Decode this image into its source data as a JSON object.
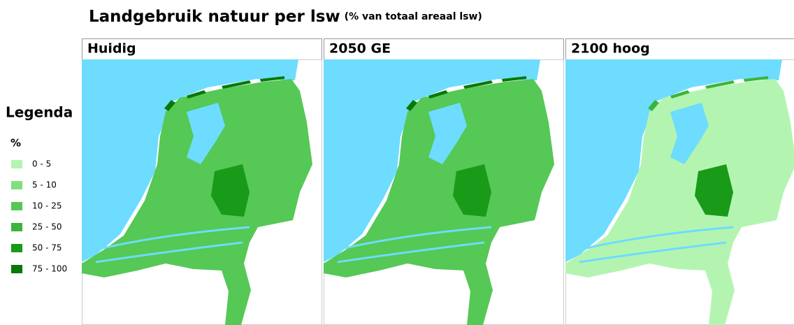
{
  "title": "Landgebruik natuur per lsw",
  "subtitle": "(% van totaal areaal lsw)",
  "panels": [
    {
      "title": "Huidig"
    },
    {
      "title": "2050 GE"
    },
    {
      "title": "2100 hoog"
    }
  ],
  "legend": {
    "title": "Legenda",
    "unit": "%",
    "items": [
      {
        "label": "0 - 5",
        "color": "#b3f5b0"
      },
      {
        "label": "5 - 10",
        "color": "#80e07c"
      },
      {
        "label": "10 - 25",
        "color": "#55c855"
      },
      {
        "label": "25 - 50",
        "color": "#3cb43c"
      },
      {
        "label": "50 - 75",
        "color": "#199a19"
      },
      {
        "label": "75 - 100",
        "color": "#087808"
      }
    ]
  }
}
